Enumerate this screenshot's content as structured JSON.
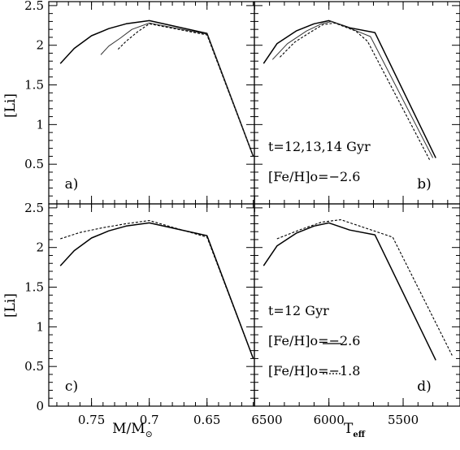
{
  "figure": {
    "xlabel_left": "M/M",
    "xlabel_left_sub": "⊙",
    "xlabel_right": "T",
    "xlabel_right_sub": "eff",
    "ylabel": "[Li]"
  },
  "chart_data": [
    {
      "type": "line",
      "panel": "a)",
      "xlabel": "",
      "ylabel": "[Li]",
      "xlim": [
        0.787,
        0.609
      ],
      "x_reversed": true,
      "ylim": [
        0,
        2.55
      ],
      "x_ticks": [],
      "y_ticks": [
        "0.5",
        "1",
        "1.5",
        "2",
        "2.5"
      ],
      "annotations": [],
      "series": [
        {
          "style": "solid",
          "color": "#000000",
          "points": [
            [
              0.777,
              1.77
            ],
            [
              0.765,
              1.96
            ],
            [
              0.75,
              2.12
            ],
            [
              0.735,
              2.21
            ],
            [
              0.72,
              2.27
            ],
            [
              0.7,
              2.31
            ],
            [
              0.65,
              2.15
            ],
            [
              0.61,
              0.6
            ]
          ]
        },
        {
          "style": "solid-thin",
          "color": "#333333",
          "points": [
            [
              0.742,
              1.88
            ],
            [
              0.735,
              1.99
            ],
            [
              0.725,
              2.09
            ],
            [
              0.715,
              2.2
            ],
            [
              0.7,
              2.28
            ],
            [
              0.65,
              2.14
            ],
            [
              0.61,
              0.6
            ]
          ]
        },
        {
          "style": "dotted",
          "color": "#000000",
          "points": [
            [
              0.727,
              1.95
            ],
            [
              0.72,
              2.05
            ],
            [
              0.71,
              2.17
            ],
            [
              0.7,
              2.27
            ],
            [
              0.65,
              2.13
            ],
            [
              0.61,
              0.6
            ]
          ]
        }
      ]
    },
    {
      "type": "line",
      "panel": "b)",
      "xlabel": "",
      "ylabel": "",
      "xlim": [
        6502,
        5117
      ],
      "x_reversed": true,
      "ylim": [
        0,
        2.55
      ],
      "x_ticks": [],
      "y_ticks": [],
      "annotations": [
        "t=12,13,14 Gyr",
        "[Fe/H]o=−2.6"
      ],
      "series": [
        {
          "style": "solid",
          "color": "#000000",
          "points": [
            [
              6440,
              1.77
            ],
            [
              6350,
              2.02
            ],
            [
              6220,
              2.18
            ],
            [
              6100,
              2.27
            ],
            [
              6000,
              2.31
            ],
            [
              5860,
              2.22
            ],
            [
              5690,
              2.16
            ],
            [
              5280,
              0.58
            ]
          ]
        },
        {
          "style": "solid-thin",
          "color": "#333333",
          "points": [
            [
              6380,
              1.82
            ],
            [
              6280,
              2.02
            ],
            [
              6150,
              2.18
            ],
            [
              6050,
              2.27
            ],
            [
              5980,
              2.3
            ],
            [
              5840,
              2.2
            ],
            [
              5720,
              2.11
            ],
            [
              5300,
              0.58
            ]
          ]
        },
        {
          "style": "dotted",
          "color": "#000000",
          "points": [
            [
              6330,
              1.85
            ],
            [
              6230,
              2.04
            ],
            [
              6120,
              2.17
            ],
            [
              6040,
              2.26
            ],
            [
              5960,
              2.28
            ],
            [
              5820,
              2.18
            ],
            [
              5740,
              2.05
            ],
            [
              5320,
              0.55
            ]
          ]
        }
      ]
    },
    {
      "type": "line",
      "panel": "c)",
      "xlabel": "M/M⊙",
      "ylabel": "[Li]",
      "xlim": [
        0.787,
        0.609
      ],
      "x_reversed": true,
      "ylim": [
        0,
        2.55
      ],
      "x_ticks": [
        "0.75",
        "0.7",
        "0.65"
      ],
      "y_ticks": [
        "0",
        "0.5",
        "1",
        "1.5",
        "2",
        "2.5"
      ],
      "annotations": [],
      "series": [
        {
          "style": "solid",
          "color": "#000000",
          "points": [
            [
              0.777,
              1.77
            ],
            [
              0.765,
              1.96
            ],
            [
              0.75,
              2.12
            ],
            [
              0.735,
              2.21
            ],
            [
              0.72,
              2.27
            ],
            [
              0.7,
              2.31
            ],
            [
              0.65,
              2.15
            ],
            [
              0.61,
              0.6
            ]
          ]
        },
        {
          "style": "dotted",
          "color": "#000000",
          "points": [
            [
              0.777,
              2.11
            ],
            [
              0.76,
              2.19
            ],
            [
              0.74,
              2.25
            ],
            [
              0.72,
              2.3
            ],
            [
              0.7,
              2.34
            ],
            [
              0.65,
              2.13
            ],
            [
              0.61,
              0.6
            ]
          ]
        }
      ]
    },
    {
      "type": "line",
      "panel": "d)",
      "xlabel": "Teff",
      "ylabel": "",
      "xlim": [
        6502,
        5117
      ],
      "x_reversed": true,
      "ylim": [
        0,
        2.55
      ],
      "x_ticks": [
        "6500",
        "6000",
        "5500"
      ],
      "y_ticks": [],
      "annotations": [
        "t=12 Gyr",
        "[Fe/H]o=−2.6",
        "[Fe/H]o=−1.8"
      ],
      "series": [
        {
          "style": "solid",
          "color": "#000000",
          "points": [
            [
              6440,
              1.77
            ],
            [
              6350,
              2.02
            ],
            [
              6220,
              2.18
            ],
            [
              6100,
              2.27
            ],
            [
              6000,
              2.31
            ],
            [
              5860,
              2.22
            ],
            [
              5690,
              2.16
            ],
            [
              5280,
              0.58
            ]
          ]
        },
        {
          "style": "dotted",
          "color": "#000000",
          "points": [
            [
              6350,
              2.11
            ],
            [
              6200,
              2.22
            ],
            [
              6050,
              2.32
            ],
            [
              5920,
              2.35
            ],
            [
              5570,
              2.13
            ],
            [
              5170,
              0.64
            ]
          ]
        }
      ]
    }
  ]
}
